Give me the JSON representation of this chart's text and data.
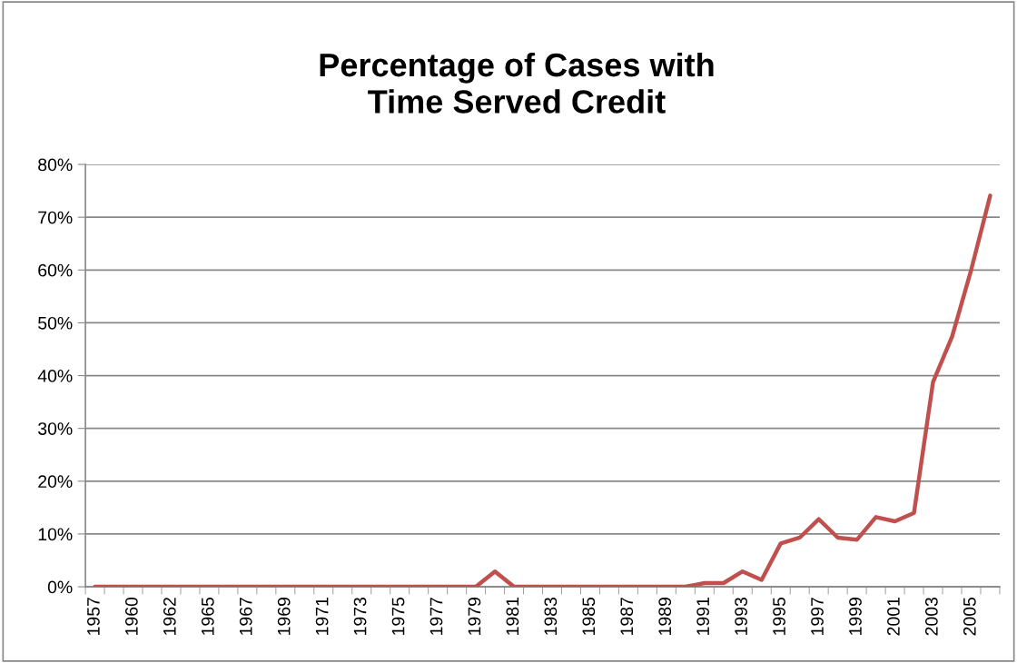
{
  "chart_data": {
    "type": "line",
    "title": "Percentage of Cases with\nTime Served Credit",
    "categories": [
      "1957",
      null,
      "1960",
      null,
      "1962",
      null,
      "1965",
      null,
      "1967",
      null,
      "1969",
      null,
      "1971",
      null,
      "1973",
      null,
      "1975",
      null,
      "1977",
      null,
      "1979",
      null,
      "1981",
      null,
      "1983",
      null,
      "1985",
      null,
      "1987",
      null,
      "1989",
      null,
      "1991",
      null,
      "1993",
      null,
      "1995",
      null,
      "1997",
      null,
      "1999",
      null,
      "2001",
      null,
      "2003",
      null,
      "2005",
      null
    ],
    "series": [
      {
        "color": "#c0504d",
        "values": [
          0,
          0,
          0,
          0,
          0,
          0,
          0,
          0,
          0,
          0,
          0,
          0,
          0,
          0,
          0,
          0,
          0,
          0,
          0,
          0,
          0,
          2.9,
          0,
          0,
          0,
          0,
          0,
          0,
          0,
          0,
          0,
          0,
          0.7,
          0.7,
          2.9,
          1.3,
          8.2,
          9.3,
          12.8,
          9.3,
          8.9,
          13.2,
          12.4,
          14.0,
          38.8,
          47.4,
          60.0,
          74.1
        ]
      }
    ],
    "ylim": [
      0,
      80
    ],
    "yticks": [
      {
        "value": 0,
        "label": "0%"
      },
      {
        "value": 10,
        "label": "10%"
      },
      {
        "value": 20,
        "label": "20%"
      },
      {
        "value": 30,
        "label": "30%"
      },
      {
        "value": 40,
        "label": "40%"
      },
      {
        "value": 50,
        "label": "50%"
      },
      {
        "value": 60,
        "label": "60%"
      },
      {
        "value": 70,
        "label": "70%"
      },
      {
        "value": 80,
        "label": "80%"
      }
    ],
    "grid": "y",
    "marker": "none",
    "line_style": "solid"
  }
}
